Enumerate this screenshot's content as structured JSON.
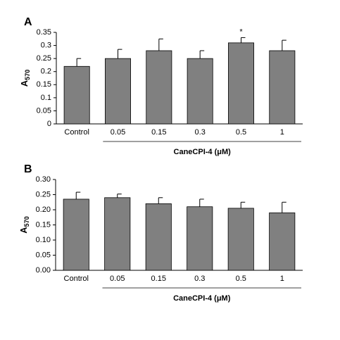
{
  "chart_data": [
    {
      "type": "bar",
      "panel_label": "A",
      "y_label": "A",
      "y_label_subscript": "570",
      "categories": [
        "Control",
        "0.05",
        "0.15",
        "0.3",
        "0.5",
        "1"
      ],
      "values": [
        0.22,
        0.25,
        0.28,
        0.25,
        0.31,
        0.28
      ],
      "errors": [
        0.03,
        0.035,
        0.045,
        0.03,
        0.02,
        0.04
      ],
      "color": "#808080",
      "ylim": [
        0,
        0.35
      ],
      "yticks": [
        0,
        0.05,
        0.1,
        0.15,
        0.2,
        0.25,
        0.3,
        0.35
      ],
      "group_label": "CaneCPI-4 (μM)",
      "annotations": [
        {
          "text": "*",
          "category": "0.5"
        }
      ]
    },
    {
      "type": "bar",
      "panel_label": "B",
      "y_label": "A",
      "y_label_subscript": "570",
      "categories": [
        "Control",
        "0.05",
        "0.15",
        "0.3",
        "0.5",
        "1"
      ],
      "values": [
        0.235,
        0.24,
        0.22,
        0.21,
        0.205,
        0.19
      ],
      "errors": [
        0.023,
        0.012,
        0.02,
        0.025,
        0.02,
        0.035
      ],
      "color": "#808080",
      "ylim": [
        0,
        0.3
      ],
      "yticks": [
        {
          "value": 0,
          "label": "0.00"
        },
        {
          "value": 0.05,
          "label": "0.05"
        },
        {
          "value": 0.1,
          "label": "0.10"
        },
        {
          "value": 0.15,
          "label": "0.15"
        },
        {
          "value": 0.2,
          "label": "0.20"
        },
        {
          "value": 0.25,
          "label": "0.25"
        },
        {
          "value": 0.3,
          "label": "0.30"
        }
      ],
      "group_label": "CaneCPI-4 (μM)"
    }
  ]
}
